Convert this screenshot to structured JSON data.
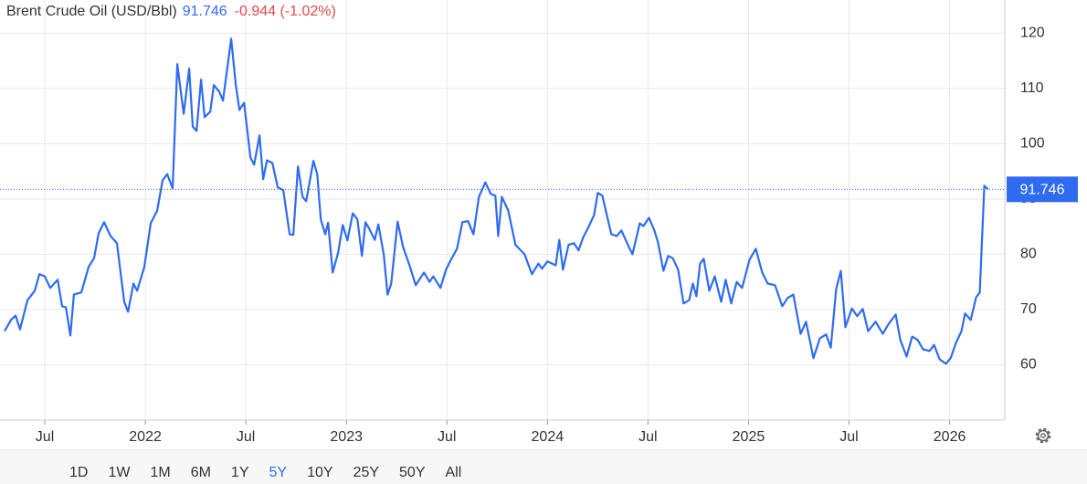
{
  "chart_data": {
    "type": "line",
    "title": "Brent Crude Oil (USD/Bbl)",
    "last_value": 91.746,
    "change_text": "-0.944 (-1.02%)",
    "color": "#2f6bf0",
    "grid": true,
    "xlim": [
      2021.3,
      2026.27
    ],
    "xticks": [
      {
        "value": 2021.5,
        "label": "Jul"
      },
      2022,
      {
        "value": 2022.5,
        "label": "Jul"
      },
      2023,
      {
        "value": 2023.5,
        "label": "Jul"
      },
      2024,
      {
        "value": 2024.5,
        "label": "Jul"
      },
      2025,
      {
        "value": 2025.5,
        "label": "Jul"
      },
      2026
    ],
    "ylim": [
      50,
      126
    ],
    "yticks": [
      60,
      70,
      80,
      90,
      100,
      110,
      120
    ],
    "x": [
      2021.3,
      2021.332,
      2021.355,
      2021.377,
      2021.414,
      2021.45,
      2021.473,
      2021.5,
      2021.527,
      2021.564,
      2021.586,
      2021.605,
      2021.627,
      2021.645,
      2021.682,
      2021.718,
      2021.745,
      2021.768,
      2021.795,
      2021.827,
      2021.859,
      2021.895,
      2021.914,
      2021.941,
      2021.959,
      2021.995,
      2022.027,
      2022.059,
      2022.086,
      2022.109,
      2022.136,
      2022.159,
      2022.191,
      2022.218,
      2022.236,
      2022.255,
      2022.277,
      2022.295,
      2022.323,
      2022.341,
      2022.368,
      2022.386,
      2022.427,
      2022.45,
      2022.468,
      2022.491,
      2022.523,
      2022.541,
      2022.568,
      2022.586,
      2022.605,
      2022.632,
      2022.659,
      2022.686,
      2022.718,
      2022.736,
      2022.759,
      2022.782,
      2022.8,
      2022.836,
      2022.855,
      2022.873,
      2022.895,
      2022.909,
      2022.932,
      2022.959,
      2022.982,
      2023.005,
      2023.032,
      2023.055,
      2023.077,
      2023.095,
      2023.114,
      2023.141,
      2023.159,
      2023.186,
      2023.205,
      2023.223,
      2023.255,
      2023.282,
      2023.314,
      2023.345,
      2023.386,
      2023.414,
      2023.432,
      2023.468,
      2023.495,
      2023.523,
      2023.55,
      2023.577,
      2023.605,
      2023.632,
      2023.659,
      2023.691,
      2023.718,
      2023.741,
      2023.755,
      2023.773,
      2023.805,
      2023.841,
      2023.886,
      2023.923,
      2023.955,
      2023.973,
      2024.0,
      2024.041,
      2024.059,
      2024.077,
      2024.105,
      2024.132,
      2024.155,
      2024.177,
      2024.205,
      2024.232,
      2024.25,
      2024.273,
      2024.295,
      2024.318,
      2024.345,
      2024.368,
      2024.405,
      2024.423,
      2024.459,
      2024.477,
      2024.505,
      2024.532,
      2024.55,
      2024.577,
      2024.6,
      2024.623,
      2024.65,
      2024.677,
      2024.705,
      2024.723,
      2024.741,
      2024.759,
      2024.777,
      2024.805,
      2024.832,
      2024.864,
      2024.886,
      2024.914,
      2024.941,
      2024.968,
      2025.005,
      2025.036,
      2025.068,
      2025.095,
      2025.132,
      2025.168,
      2025.195,
      2025.223,
      2025.259,
      2025.286,
      2025.323,
      2025.355,
      2025.386,
      2025.409,
      2025.436,
      2025.459,
      2025.482,
      2025.514,
      2025.541,
      2025.568,
      2025.595,
      2025.632,
      2025.668,
      2025.695,
      2025.732,
      2025.755,
      2025.786,
      2025.814,
      2025.841,
      2025.868,
      2025.9,
      2025.923,
      2025.95,
      2025.982,
      2026.005,
      2026.032,
      2026.059,
      2026.077,
      2026.105,
      2026.132,
      2026.15,
      2026.173,
      2026.191
    ],
    "values": [
      66.1,
      68.1,
      68.9,
      66.4,
      71.7,
      73.4,
      76.4,
      76.0,
      73.9,
      75.4,
      70.6,
      70.4,
      65.3,
      72.7,
      73.1,
      77.7,
      79.3,
      83.8,
      85.8,
      83.3,
      82.0,
      71.4,
      69.6,
      74.7,
      73.4,
      77.7,
      85.6,
      87.9,
      93.4,
      94.5,
      91.9,
      114.4,
      105.4,
      113.6,
      103.1,
      102.3,
      111.6,
      104.8,
      105.8,
      110.6,
      109.4,
      107.8,
      119.0,
      110.7,
      106.1,
      107.4,
      97.5,
      96.2,
      101.5,
      93.6,
      97.0,
      96.5,
      92.1,
      91.6,
      83.6,
      83.5,
      95.9,
      90.4,
      89.6,
      96.9,
      94.5,
      86.3,
      83.6,
      85.7,
      76.7,
      80.3,
      85.3,
      82.5,
      87.4,
      86.3,
      79.7,
      85.8,
      84.6,
      82.6,
      85.4,
      80.0,
      72.7,
      74.7,
      85.9,
      81.3,
      78.0,
      74.4,
      76.7,
      75.0,
      76.0,
      73.9,
      77.2,
      79.2,
      81.0,
      85.8,
      86.0,
      83.6,
      90.4,
      93.0,
      90.9,
      90.6,
      83.3,
      90.4,
      87.9,
      81.7,
      80.0,
      76.4,
      78.3,
      77.4,
      78.7,
      78.0,
      82.6,
      77.2,
      81.7,
      82.0,
      80.7,
      83.0,
      85.0,
      87.1,
      91.1,
      90.6,
      87.1,
      83.6,
      83.3,
      84.3,
      81.3,
      80.0,
      85.6,
      85.1,
      86.6,
      84.3,
      82.1,
      77.0,
      79.7,
      79.3,
      77.2,
      71.1,
      71.7,
      74.7,
      72.4,
      78.3,
      79.2,
      73.4,
      76.0,
      71.4,
      75.4,
      71.1,
      75.0,
      73.9,
      79.0,
      81.0,
      76.7,
      74.7,
      74.4,
      70.6,
      72.1,
      72.7,
      65.6,
      67.8,
      61.2,
      64.8,
      65.5,
      63.1,
      73.7,
      77.0,
      66.8,
      70.2,
      68.8,
      70.1,
      66.1,
      67.8,
      65.6,
      67.3,
      69.1,
      64.5,
      61.5,
      65.1,
      64.5,
      62.8,
      62.5,
      63.6,
      61.0,
      60.2,
      61.2,
      64.0,
      66.1,
      69.3,
      68.1,
      72.2,
      73.1,
      92.4,
      91.746
    ]
  },
  "ranges": [
    "1D",
    "1W",
    "1M",
    "6M",
    "1Y",
    "5Y",
    "10Y",
    "25Y",
    "50Y",
    "All"
  ],
  "active_range": "5Y"
}
